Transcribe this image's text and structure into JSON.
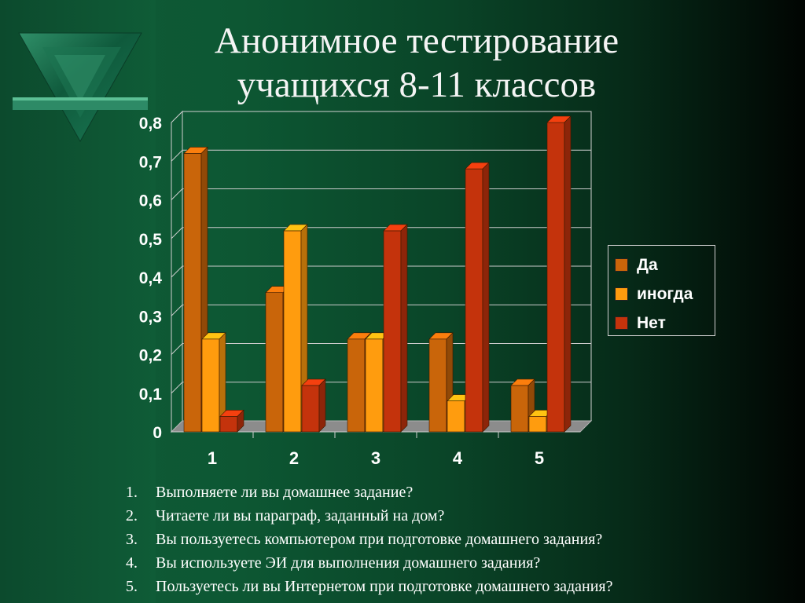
{
  "title_lines": [
    "Анонимное тестирование",
    "учащихся 8-11 классов"
  ],
  "chart_data": {
    "type": "bar",
    "categories": [
      "1",
      "2",
      "3",
      "4",
      "5"
    ],
    "series": [
      {
        "name": "Да",
        "values": [
          0.72,
          0.36,
          0.24,
          0.24,
          0.12
        ],
        "color": "#c9650a"
      },
      {
        "name": "иногда",
        "values": [
          0.24,
          0.52,
          0.24,
          0.08,
          0.04
        ],
        "color": "#ff9c0e"
      },
      {
        "name": "Нет",
        "values": [
          0.04,
          0.12,
          0.52,
          0.68,
          0.8
        ],
        "color": "#c4330c"
      }
    ],
    "ylim": [
      0,
      0.8
    ],
    "yticks": [
      "0",
      "0,1",
      "0,2",
      "0,3",
      "0,4",
      "0,5",
      "0,6",
      "0,7",
      "0,8"
    ],
    "grid": true,
    "legend_position": "right"
  },
  "questions": [
    {
      "num": "1.",
      "text": "Выполняете ли вы домашнее задание?"
    },
    {
      "num": "2.",
      "text": "Читаете ли вы параграф, заданный на дом?"
    },
    {
      "num": "3.",
      "text": "Вы пользуетесь компьютером при подготовке домашнего задания?"
    },
    {
      "num": "4.",
      "text": "Вы используете ЭИ для выполнения домашнего задания?"
    },
    {
      "num": "5.",
      "text": "Пользуетесь ли вы Интернетом при подготовке домашнего задания?"
    }
  ]
}
